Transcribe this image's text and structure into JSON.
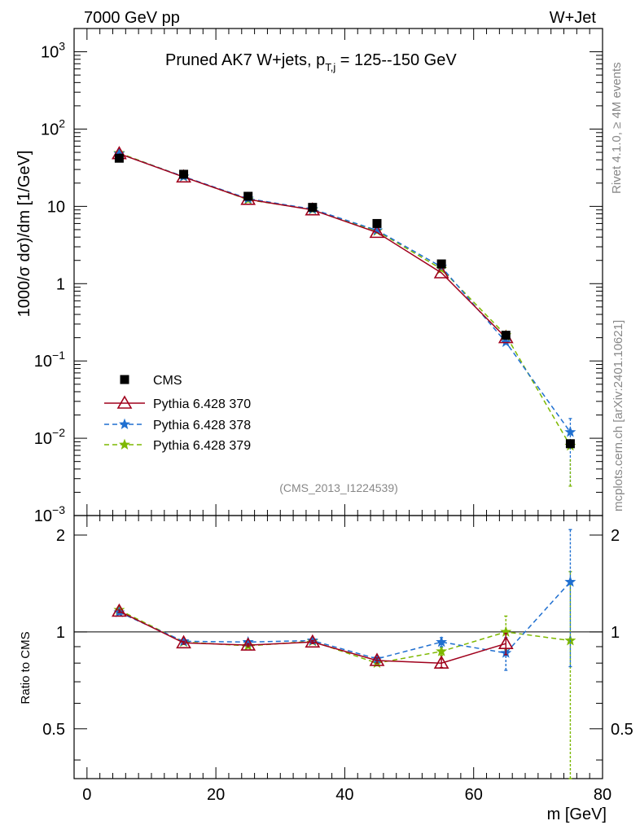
{
  "header": {
    "left": "7000 GeV pp",
    "right": "W+Jet"
  },
  "side": {
    "top": "Rivet 4.1.0, ≥ 4M events",
    "bottom": "mcplots.cern.ch [arXiv:2401.10621]"
  },
  "chart_data": {
    "type": "line",
    "title_main": "Pruned AK7 W+jets, p",
    "title_sub": "T,j",
    "title_rest": " = 125--150 GeV",
    "watermark": "(CMS_2013_I1224539)",
    "xlabel": "m [GeV]",
    "ylabel": "1000/σ  dσ)/dm [1/GeV]",
    "ratio_ylabel": "Ratio to CMS",
    "xlim": [
      -2,
      80
    ],
    "ylim": [
      0.001,
      2000
    ],
    "ratio_ylim": [
      0.35,
      2.3
    ],
    "x_ticks": [
      "0",
      "20",
      "40",
      "60",
      "80"
    ],
    "x": [
      5,
      15,
      25,
      35,
      45,
      55,
      65,
      75
    ],
    "y_ticks_main": [
      {
        "value": 1000,
        "base": "10",
        "exp": "3"
      },
      {
        "value": 100,
        "base": "10",
        "exp": "2"
      },
      {
        "value": 10,
        "base": "10",
        "exp": ""
      },
      {
        "value": 1,
        "base": "1",
        "exp": ""
      },
      {
        "value": 0.1,
        "base": "10",
        "exp": "−1"
      },
      {
        "value": 0.01,
        "base": "10",
        "exp": "−2"
      },
      {
        "value": 0.001,
        "base": "10",
        "exp": "−3"
      }
    ],
    "y_ticks_ratio": [
      "2",
      "1",
      "0.5"
    ],
    "reference": {
      "name": "CMS",
      "values": [
        42,
        26,
        13.5,
        9.7,
        6.0,
        1.8,
        0.215,
        0.0085
      ]
    },
    "series": [
      {
        "name": "Pythia 6.428 370",
        "color": "#a0001c",
        "marker": "triangle",
        "dash": "",
        "values": [
          48,
          24,
          12.3,
          9.0,
          4.6,
          1.38,
          0.2,
          null
        ],
        "ratio": [
          1.16,
          0.925,
          0.91,
          0.93,
          0.815,
          0.8,
          0.92,
          null
        ],
        "ratio_err": [
          0.01,
          0.01,
          0.01,
          0.01,
          0.015,
          0.025,
          0.07,
          0
        ]
      },
      {
        "name": "Pythia 6.428 378",
        "color": "#1f6fd0",
        "marker": "star",
        "dash": "6,4",
        "values": [
          48,
          24.3,
          12.6,
          9.2,
          4.9,
          1.65,
          0.175,
          0.012
        ],
        "ratio": [
          1.15,
          0.935,
          0.93,
          0.94,
          0.825,
          0.93,
          0.86,
          1.43
        ],
        "ratio_err": [
          0.01,
          0.01,
          0.01,
          0.01,
          0.015,
          0.03,
          0.1,
          0.65
        ]
      },
      {
        "name": "Pythia 6.428 379",
        "color": "#7db800",
        "marker": "star",
        "dash": "6,4",
        "values": [
          49,
          24.2,
          12.2,
          9.1,
          4.8,
          1.55,
          0.215,
          0.008
        ],
        "ratio": [
          1.17,
          0.93,
          0.905,
          0.935,
          0.8,
          0.87,
          1.0,
          0.94
        ],
        "ratio_err": [
          0.01,
          0.01,
          0.01,
          0.01,
          0.015,
          0.025,
          0.12,
          0.6
        ]
      }
    ],
    "legend_position": "lower-left"
  }
}
